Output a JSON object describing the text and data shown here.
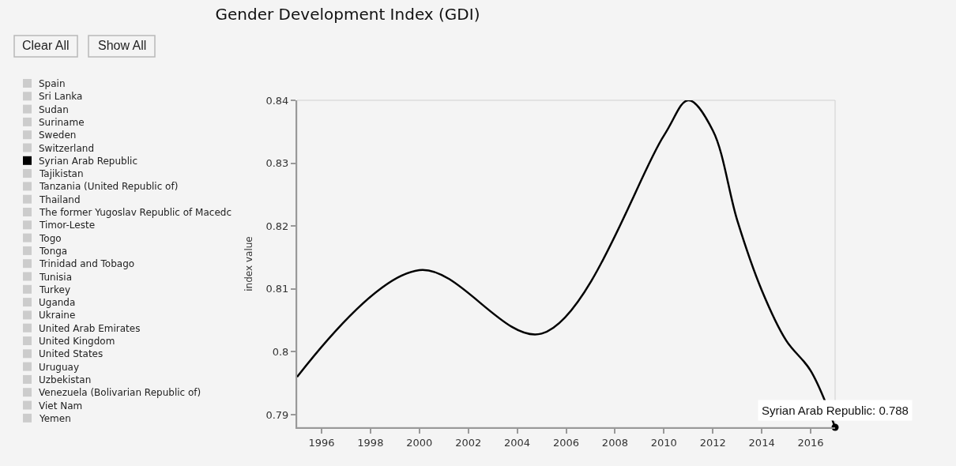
{
  "chart_data": {
    "type": "line",
    "title": "Gender Development Index (GDI)",
    "ylabel": "index value",
    "x": [
      1995,
      2000,
      2005,
      2010,
      2011,
      2012,
      2013,
      2014,
      2015,
      2016,
      2017
    ],
    "xlim": [
      1995,
      2017
    ],
    "xticks": [
      1996,
      1998,
      2000,
      2002,
      2004,
      2006,
      2008,
      2010,
      2012,
      2014,
      2016
    ],
    "ylim": [
      0.788,
      0.84
    ],
    "yticks": [
      0.79,
      0.8,
      0.81,
      0.82,
      0.83,
      0.84
    ],
    "grid": false,
    "legend": "left",
    "line_style": "solid",
    "annotations": [
      "Clear All",
      "Show All",
      {
        "text": "Syrian Arab Republic: 0.788",
        "x": 2017,
        "y": 0.788
      }
    ],
    "series": [
      {
        "name": "Spain",
        "color": "#cccccc",
        "values": [
          null,
          null,
          null,
          null,
          null,
          null,
          null,
          null,
          null,
          null,
          null
        ]
      },
      {
        "name": "Sri Lanka",
        "color": "#cccccc",
        "values": [
          null,
          null,
          null,
          null,
          null,
          null,
          null,
          null,
          null,
          null,
          null
        ]
      },
      {
        "name": "Sudan",
        "color": "#cccccc",
        "values": [
          null,
          null,
          null,
          null,
          null,
          null,
          null,
          null,
          null,
          null,
          null
        ]
      },
      {
        "name": "Suriname",
        "color": "#cccccc",
        "values": [
          null,
          null,
          null,
          null,
          null,
          null,
          null,
          null,
          null,
          null,
          null
        ]
      },
      {
        "name": "Sweden",
        "color": "#cccccc",
        "values": [
          null,
          null,
          null,
          null,
          null,
          null,
          null,
          null,
          null,
          null,
          null
        ]
      },
      {
        "name": "Switzerland",
        "color": "#cccccc",
        "values": [
          null,
          null,
          null,
          null,
          null,
          null,
          null,
          null,
          null,
          null,
          null
        ]
      },
      {
        "name": "Syrian Arab Republic",
        "color": "#000000",
        "values": [
          0.796,
          0.813,
          0.8029,
          0.8344,
          0.84,
          0.8352,
          0.8209,
          0.8098,
          0.8018,
          0.797,
          0.788
        ]
      },
      {
        "name": "Tajikistan",
        "color": "#cccccc",
        "values": [
          null,
          null,
          null,
          null,
          null,
          null,
          null,
          null,
          null,
          null,
          null
        ]
      },
      {
        "name": "Tanzania (United Republic of)",
        "color": "#cccccc",
        "values": [
          null,
          null,
          null,
          null,
          null,
          null,
          null,
          null,
          null,
          null,
          null
        ]
      },
      {
        "name": "Thailand",
        "color": "#cccccc",
        "values": [
          null,
          null,
          null,
          null,
          null,
          null,
          null,
          null,
          null,
          null,
          null
        ]
      },
      {
        "name": "The former Yugoslav Republic of Macedc",
        "color": "#cccccc",
        "values": [
          null,
          null,
          null,
          null,
          null,
          null,
          null,
          null,
          null,
          null,
          null
        ]
      },
      {
        "name": "Timor-Leste",
        "color": "#cccccc",
        "values": [
          null,
          null,
          null,
          null,
          null,
          null,
          null,
          null,
          null,
          null,
          null
        ]
      },
      {
        "name": "Togo",
        "color": "#cccccc",
        "values": [
          null,
          null,
          null,
          null,
          null,
          null,
          null,
          null,
          null,
          null,
          null
        ]
      },
      {
        "name": "Tonga",
        "color": "#cccccc",
        "values": [
          null,
          null,
          null,
          null,
          null,
          null,
          null,
          null,
          null,
          null,
          null
        ]
      },
      {
        "name": "Trinidad and Tobago",
        "color": "#cccccc",
        "values": [
          null,
          null,
          null,
          null,
          null,
          null,
          null,
          null,
          null,
          null,
          null
        ]
      },
      {
        "name": "Tunisia",
        "color": "#cccccc",
        "values": [
          null,
          null,
          null,
          null,
          null,
          null,
          null,
          null,
          null,
          null,
          null
        ]
      },
      {
        "name": "Turkey",
        "color": "#cccccc",
        "values": [
          null,
          null,
          null,
          null,
          null,
          null,
          null,
          null,
          null,
          null,
          null
        ]
      },
      {
        "name": "Uganda",
        "color": "#cccccc",
        "values": [
          null,
          null,
          null,
          null,
          null,
          null,
          null,
          null,
          null,
          null,
          null
        ]
      },
      {
        "name": "Ukraine",
        "color": "#cccccc",
        "values": [
          null,
          null,
          null,
          null,
          null,
          null,
          null,
          null,
          null,
          null,
          null
        ]
      },
      {
        "name": "United Arab Emirates",
        "color": "#cccccc",
        "values": [
          null,
          null,
          null,
          null,
          null,
          null,
          null,
          null,
          null,
          null,
          null
        ]
      },
      {
        "name": "United Kingdom",
        "color": "#cccccc",
        "values": [
          null,
          null,
          null,
          null,
          null,
          null,
          null,
          null,
          null,
          null,
          null
        ]
      },
      {
        "name": "United States",
        "color": "#cccccc",
        "values": [
          null,
          null,
          null,
          null,
          null,
          null,
          null,
          null,
          null,
          null,
          null
        ]
      },
      {
        "name": "Uruguay",
        "color": "#cccccc",
        "values": [
          null,
          null,
          null,
          null,
          null,
          null,
          null,
          null,
          null,
          null,
          null
        ]
      },
      {
        "name": "Uzbekistan",
        "color": "#cccccc",
        "values": [
          null,
          null,
          null,
          null,
          null,
          null,
          null,
          null,
          null,
          null,
          null
        ]
      },
      {
        "name": "Venezuela (Bolivarian Republic of)",
        "color": "#cccccc",
        "values": [
          null,
          null,
          null,
          null,
          null,
          null,
          null,
          null,
          null,
          null,
          null
        ]
      },
      {
        "name": "Viet Nam",
        "color": "#cccccc",
        "values": [
          null,
          null,
          null,
          null,
          null,
          null,
          null,
          null,
          null,
          null,
          null
        ]
      },
      {
        "name": "Yemen",
        "color": "#cccccc",
        "values": [
          null,
          null,
          null,
          null,
          null,
          null,
          null,
          null,
          null,
          null,
          null
        ]
      }
    ]
  }
}
